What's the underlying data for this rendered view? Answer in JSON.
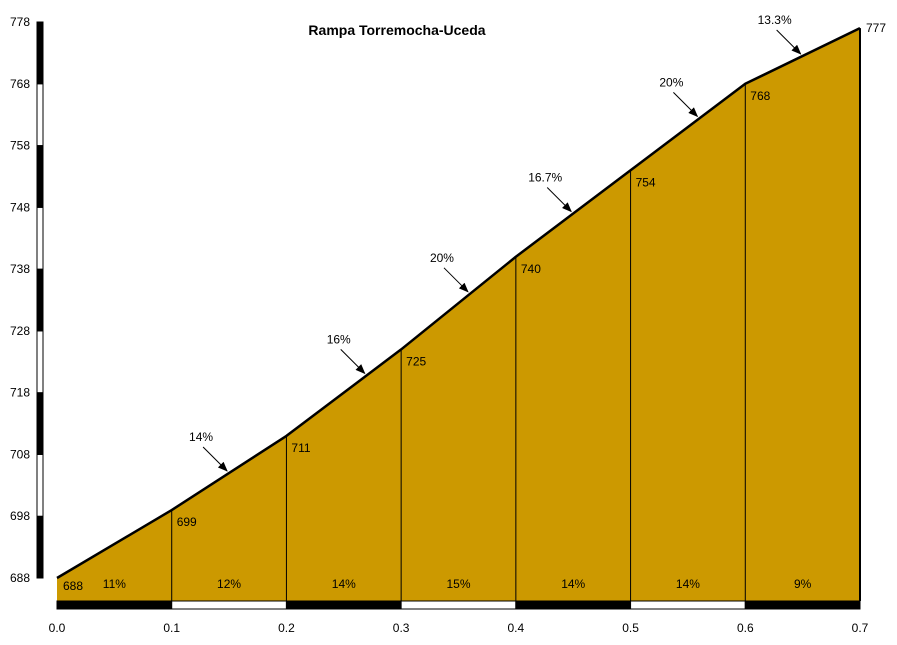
{
  "chart_data": {
    "type": "area",
    "title": "Rampa Torremocha-Uceda",
    "xlabel": "",
    "ylabel": "",
    "xlim": [
      0.0,
      0.7
    ],
    "ylim": [
      688,
      778
    ],
    "x_ticks": [
      "0.0",
      "0.1",
      "0.2",
      "0.3",
      "0.4",
      "0.5",
      "0.6",
      "0.7"
    ],
    "y_ticks": [
      "688",
      "698",
      "708",
      "718",
      "728",
      "738",
      "748",
      "758",
      "768",
      "778"
    ],
    "points": [
      {
        "x": 0.0,
        "y": 688,
        "label": "688"
      },
      {
        "x": 0.1,
        "y": 699,
        "label": "699"
      },
      {
        "x": 0.2,
        "y": 711,
        "label": "711"
      },
      {
        "x": 0.3,
        "y": 725,
        "label": "725"
      },
      {
        "x": 0.4,
        "y": 740,
        "label": "740"
      },
      {
        "x": 0.5,
        "y": 754,
        "label": "754"
      },
      {
        "x": 0.6,
        "y": 768,
        "label": "768"
      },
      {
        "x": 0.7,
        "y": 777,
        "label": "777"
      }
    ],
    "segment_gradients": [
      "11%",
      "12%",
      "14%",
      "15%",
      "14%",
      "14%",
      "9%"
    ],
    "slope_annotations": [
      {
        "text": "14%",
        "x": 0.15
      },
      {
        "text": "16%",
        "x": 0.27
      },
      {
        "text": "20%",
        "x": 0.36
      },
      {
        "text": "16.7%",
        "x": 0.45
      },
      {
        "text": "20%",
        "x": 0.56
      },
      {
        "text": "13.3%",
        "x": 0.65
      }
    ],
    "grid": false,
    "fill_color": "#CC9900",
    "line_color": "#000000"
  }
}
